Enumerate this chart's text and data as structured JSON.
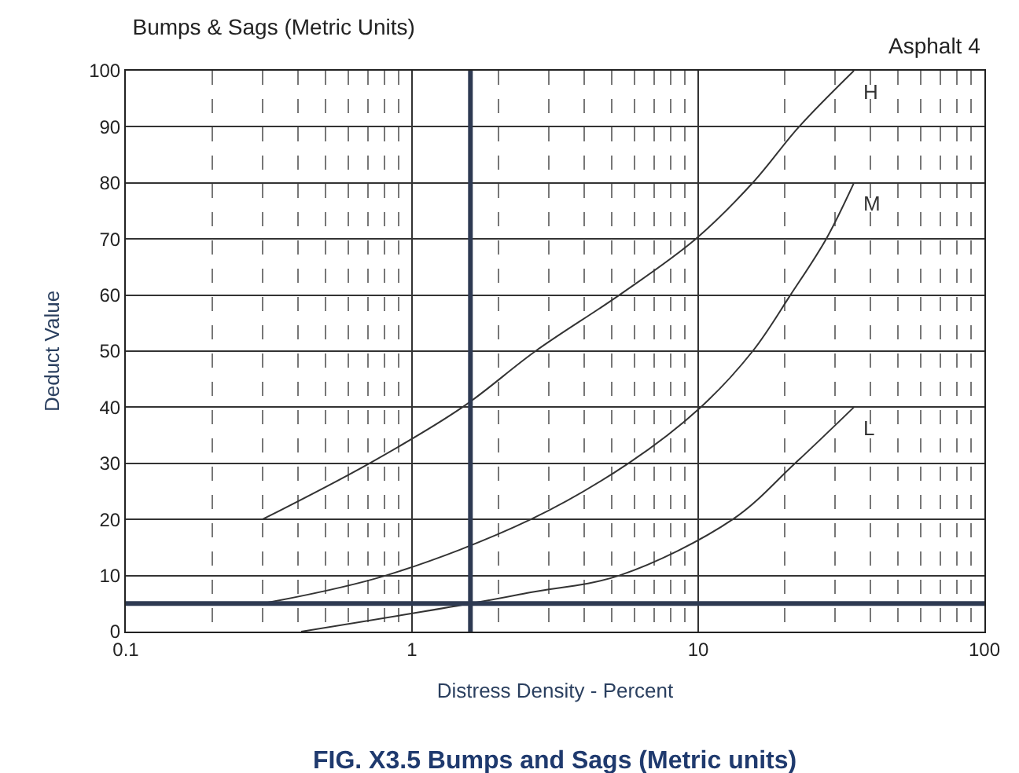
{
  "chart_data": {
    "type": "line",
    "title": "Bumps & Sags (Metric Units)",
    "xlabel": "Distress Density - Percent",
    "ylabel": "Deduct Value",
    "annotations": [
      "Asphalt 4",
      "FIG. X3.5 Bumps and Sags (Metric units)"
    ],
    "log": "x",
    "xlim": [
      0.1,
      100
    ],
    "xticks": [
      0.1,
      1,
      10,
      100
    ],
    "ylim": [
      0,
      100
    ],
    "yticks": [
      0,
      10,
      20,
      30,
      40,
      50,
      60,
      70,
      80,
      90,
      100
    ],
    "grid": true,
    "legend": false,
    "marker": "none",
    "line_style": "solid",
    "series": [
      {
        "name": "H",
        "color": "#333333",
        "x": [
          0.3,
          0.71,
          1.5,
          2.7,
          5.3,
          9.8,
          15.5,
          22.5,
          35
        ],
        "values": [
          20,
          30,
          40,
          50,
          60,
          70,
          80,
          90,
          100
        ]
      },
      {
        "name": "M",
        "color": "#333333",
        "x": [
          0.3,
          0.81,
          2.6,
          5.7,
          10.2,
          15.5,
          21,
          28,
          35
        ],
        "values": [
          5,
          10,
          20,
          30,
          40,
          50,
          60,
          70,
          80
        ]
      },
      {
        "name": "L",
        "color": "#333333",
        "x": [
          0.41,
          1.6,
          2.6,
          5.3,
          13.2,
          21.8,
          35
        ],
        "values": [
          0,
          5,
          7,
          10,
          20,
          30,
          40
        ]
      }
    ],
    "ref_lines": [
      {
        "axis": "x",
        "value": 1.6,
        "color": "#2e3a52"
      },
      {
        "axis": "y",
        "value": 5,
        "color": "#2e3a52"
      }
    ]
  }
}
